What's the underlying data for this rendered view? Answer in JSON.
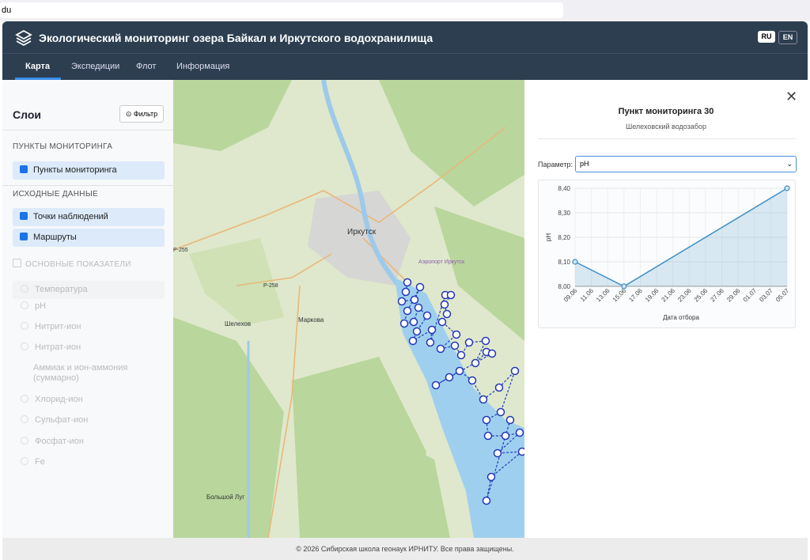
{
  "browser": {
    "url": "du"
  },
  "header": {
    "title": "Экологический мониторинг озера Байкал и Иркутского водохранилища",
    "languages": [
      "RU",
      "EN"
    ],
    "tabs": [
      "Карта",
      "Экспедиции",
      "Флот",
      "Информация"
    ]
  },
  "sidebar": {
    "title": "Слои",
    "filter_button": "Фильтр",
    "sections": [
      {
        "title": "ПУНКТЫ МОНИТОРИНГА",
        "items": [
          "Пункты мониторинга"
        ]
      },
      {
        "title": "ИСХОДНЫЕ ДАННЫЕ",
        "items": [
          "Точки наблюдений",
          "Маршруты"
        ]
      }
    ],
    "indicators_title": "ОСНОВНЫЕ ПОКАЗАТЕЛИ",
    "indicators": [
      "Температура",
      "pH",
      "Нитрит-ион",
      "Нитрат-ион",
      "Аммиак и ион-аммония (суммарно)",
      "Хлорид-ион",
      "Сульфат-ион",
      "Фосфат-ион",
      "Fe"
    ]
  },
  "map": {
    "labels": [
      "Иркутск",
      "Шелехов",
      "Маркова",
      "Большой Луг",
      "Р-255",
      "Р-258",
      "Аэропорт Иркутск"
    ]
  },
  "panel": {
    "title": "Пункт мониторинга 30",
    "subtitle": "Шелеховский водозабор",
    "parameter_label": "Параметр:",
    "parameter_value": "pH"
  },
  "chart_data": {
    "type": "line",
    "x_label": "Дата отбора",
    "y_label": "pH",
    "categories": [
      "09.06",
      "11.06",
      "13.06",
      "15.06",
      "17.06",
      "19.06",
      "21.06",
      "23.06",
      "25.06",
      "27.06",
      "29.06",
      "01.07",
      "03.07",
      "05.07"
    ],
    "x": [
      "09.06",
      "15.06",
      "05.07"
    ],
    "values": [
      8.1,
      8.0,
      8.4
    ],
    "color": "#3d8fc4",
    "ylim": [
      8.0,
      8.4
    ],
    "yticks": [
      {
        "value": 8.0,
        "label": "8,00"
      },
      {
        "value": 8.1,
        "label": "8,10"
      },
      {
        "value": 8.2,
        "label": "8,20"
      },
      {
        "value": 8.3,
        "label": "8,30"
      },
      {
        "value": 8.4,
        "label": "8,40"
      }
    ],
    "grid": true
  },
  "footer": {
    "text": "© 2026 Сибирская школа геонаук ИРНИТУ. Все права защищены."
  }
}
